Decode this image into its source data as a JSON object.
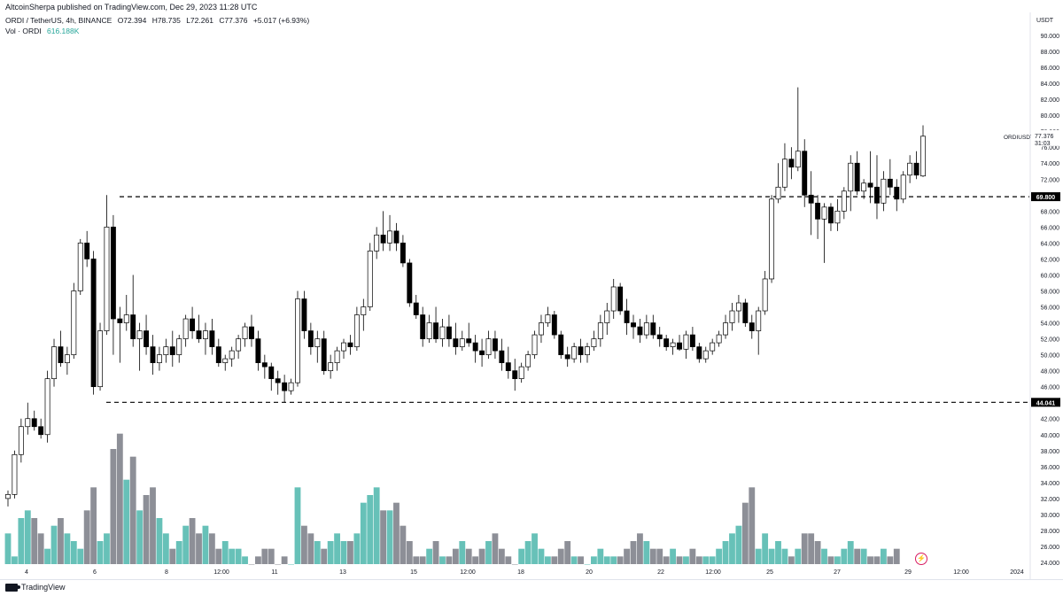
{
  "header": {
    "publisher_text": "AltcoinSherpa published on TradingView.com, Dec 29, 2023 11:28 UTC"
  },
  "legend": {
    "symbol": "ORDI / TetherUS, 4h, BINANCE",
    "open": "O72.394",
    "high": "H78.735",
    "low": "L72.261",
    "close": "C77.376",
    "change": "+5.017 (+6.93%)",
    "vol_label": "Vol · ORDI",
    "vol_value": "616.188K"
  },
  "price_axis": {
    "currency": "USDT",
    "ticks": [
      "90.000",
      "88.000",
      "86.000",
      "84.000",
      "82.000",
      "80.000",
      "78.000",
      "76.000",
      "74.000",
      "72.000",
      "70.000",
      "68.000",
      "66.000",
      "64.000",
      "62.000",
      "60.000",
      "58.000",
      "56.000",
      "54.000",
      "52.000",
      "50.000",
      "48.000",
      "46.000",
      "44.000",
      "42.000",
      "40.000",
      "38.000",
      "36.000",
      "34.000",
      "32.000",
      "30.000",
      "28.000",
      "26.000",
      "24.000"
    ]
  },
  "time_axis": {
    "ticks": [
      "4",
      "6",
      "8",
      "12:00",
      "11",
      "13",
      "15",
      "12:00",
      "18",
      "20",
      "22",
      "12:00",
      "25",
      "27",
      "29",
      "12:00",
      "2024"
    ]
  },
  "price_labels": {
    "symbol": "ORDIUSDT",
    "last": "77.376",
    "countdown": "31:03",
    "resistance": "69.800",
    "support": "44.041"
  },
  "colors": {
    "up_candle": "#ffffff",
    "down_candle": "#000000",
    "volume_up": "#26a69a",
    "volume_down": "#5d606b",
    "line": "#000000"
  },
  "footer": {
    "logo_text": "TradingView",
    "icon": "bolt-icon"
  },
  "chart_data": {
    "type": "candlestick",
    "ylim": [
      24,
      91
    ],
    "levels": [
      69.8,
      44.041
    ],
    "candles": [
      [
        32,
        33,
        31,
        32.5
      ],
      [
        32.5,
        38,
        32,
        37.5
      ],
      [
        37.5,
        42,
        36.5,
        41
      ],
      [
        41,
        44,
        40,
        42
      ],
      [
        42,
        43,
        40.5,
        41
      ],
      [
        41,
        42,
        39.5,
        40
      ],
      [
        40,
        48,
        39,
        47
      ],
      [
        47,
        52,
        46,
        51
      ],
      [
        51,
        53,
        48.5,
        49
      ],
      [
        49,
        51,
        47.5,
        50
      ],
      [
        50,
        59,
        49.5,
        58
      ],
      [
        58,
        64.5,
        57.5,
        64
      ],
      [
        64,
        65.5,
        61,
        62
      ],
      [
        62,
        63,
        45,
        46
      ],
      [
        46,
        54,
        45.5,
        53
      ],
      [
        53,
        70,
        52.5,
        66
      ],
      [
        66,
        67.5,
        50,
        54.5
      ],
      [
        54.5,
        56,
        49,
        54
      ],
      [
        54,
        57.5,
        53,
        55
      ],
      [
        55,
        60,
        51,
        52
      ],
      [
        52,
        54,
        48,
        53
      ],
      [
        53,
        55,
        50,
        51
      ],
      [
        51,
        52.5,
        47.5,
        49
      ],
      [
        49,
        51,
        48,
        50
      ],
      [
        50,
        52,
        49,
        51
      ],
      [
        51,
        53,
        48.5,
        50
      ],
      [
        50,
        52.5,
        49,
        52
      ],
      [
        52,
        55,
        51,
        54.5
      ],
      [
        54.5,
        56,
        52,
        53
      ],
      [
        53,
        55,
        51.5,
        52
      ],
      [
        52,
        54,
        50,
        53
      ],
      [
        53,
        54.5,
        50,
        51
      ],
      [
        51,
        52,
        48.5,
        49
      ],
      [
        49,
        50,
        48,
        49.5
      ],
      [
        49.5,
        51,
        48.5,
        50.5
      ],
      [
        50.5,
        52.5,
        49.5,
        52
      ],
      [
        52,
        54,
        51,
        53.5
      ],
      [
        53.5,
        55,
        51,
        52
      ],
      [
        52,
        53,
        48,
        49
      ],
      [
        49,
        50,
        47,
        48.5
      ],
      [
        48.5,
        49,
        45.5,
        47
      ],
      [
        47,
        48,
        45,
        46.5
      ],
      [
        46.5,
        47.5,
        44,
        45.5
      ],
      [
        45.5,
        47,
        45,
        46.5
      ],
      [
        46.5,
        58,
        46,
        57
      ],
      [
        57,
        58,
        52,
        53
      ],
      [
        53,
        54,
        50,
        51
      ],
      [
        51,
        53,
        49,
        52
      ],
      [
        52,
        53,
        47.5,
        48
      ],
      [
        48,
        50,
        47,
        49
      ],
      [
        49,
        51,
        48,
        50.5
      ],
      [
        50.5,
        52,
        49.5,
        51.5
      ],
      [
        51.5,
        52.5,
        50,
        51
      ],
      [
        51,
        56,
        50.5,
        55
      ],
      [
        55,
        57,
        53,
        56
      ],
      [
        56,
        64,
        55.5,
        63
      ],
      [
        63,
        66,
        62,
        65
      ],
      [
        65,
        68,
        63,
        64
      ],
      [
        64,
        67.5,
        63,
        65.5
      ],
      [
        65.5,
        66.5,
        63,
        64
      ],
      [
        64,
        65,
        61,
        61.5
      ],
      [
        61.5,
        62,
        56,
        56.5
      ],
      [
        56.5,
        57.5,
        54.5,
        55
      ],
      [
        55,
        56,
        51,
        52
      ],
      [
        52,
        55,
        51.5,
        54
      ],
      [
        54,
        56,
        51.5,
        52
      ],
      [
        52,
        54.5,
        51,
        53.5
      ],
      [
        53.5,
        55,
        51,
        52
      ],
      [
        52,
        54,
        50,
        51
      ],
      [
        51,
        53,
        50.5,
        52
      ],
      [
        52,
        54,
        51,
        51.5
      ],
      [
        51.5,
        52.5,
        49,
        50.5
      ],
      [
        50.5,
        52,
        48.5,
        50
      ],
      [
        50,
        53,
        49.5,
        52
      ],
      [
        52,
        53,
        49.5,
        50.5
      ],
      [
        50.5,
        52,
        48,
        49
      ],
      [
        49,
        51,
        47,
        48
      ],
      [
        48,
        49.5,
        45.5,
        47
      ],
      [
        47,
        49,
        46.5,
        48.5
      ],
      [
        48.5,
        50.5,
        48,
        50
      ],
      [
        50,
        53,
        49.5,
        52.5
      ],
      [
        52.5,
        55,
        51.5,
        54
      ],
      [
        54,
        56,
        53.5,
        55
      ],
      [
        55,
        55.5,
        52,
        52.5
      ],
      [
        52.5,
        53,
        49.5,
        50
      ],
      [
        50,
        51,
        48.5,
        49.5
      ],
      [
        49.5,
        51.5,
        49,
        51
      ],
      [
        51,
        52,
        49,
        50
      ],
      [
        50,
        51.5,
        49,
        51
      ],
      [
        51,
        53,
        50.5,
        52
      ],
      [
        52,
        55,
        51,
        54
      ],
      [
        54,
        56.5,
        52.5,
        55.5
      ],
      [
        55.5,
        59.5,
        54.5,
        58.5
      ],
      [
        58.5,
        59,
        55,
        55.5
      ],
      [
        55.5,
        57,
        52.5,
        54
      ],
      [
        54,
        55,
        52,
        53.5
      ],
      [
        53.5,
        54.5,
        51.5,
        52.5
      ],
      [
        52.5,
        55,
        52,
        54
      ],
      [
        54,
        55,
        52,
        52.5
      ],
      [
        52.5,
        53.5,
        51,
        52
      ],
      [
        52,
        52.5,
        50.5,
        51
      ],
      [
        51,
        52,
        50,
        51.5
      ],
      [
        51.5,
        52.5,
        50.5,
        50.7
      ],
      [
        50.7,
        53,
        49.5,
        52.5
      ],
      [
        52.5,
        53.5,
        50.5,
        51
      ],
      [
        51,
        51.5,
        49,
        49.5
      ],
      [
        49.5,
        51,
        49,
        50.5
      ],
      [
        50.5,
        52,
        50,
        51.5
      ],
      [
        51.5,
        53,
        51,
        52.5
      ],
      [
        52.5,
        55,
        52,
        54
      ],
      [
        54,
        56.5,
        53,
        55.5
      ],
      [
        55.5,
        57.5,
        54,
        56.5
      ],
      [
        56.5,
        57,
        53.5,
        54
      ],
      [
        54,
        55,
        52,
        53
      ],
      [
        53,
        56,
        50,
        55.5
      ],
      [
        55.5,
        60.5,
        55,
        59.5
      ],
      [
        59.5,
        70,
        59,
        69.5
      ],
      [
        69.5,
        74,
        69,
        71
      ],
      [
        71,
        76.5,
        70.5,
        74.5
      ],
      [
        74.5,
        76,
        72,
        73.5
      ],
      [
        73.5,
        83.5,
        73,
        75.5
      ],
      [
        75.5,
        77,
        68.5,
        70
      ],
      [
        70,
        73,
        65,
        69
      ],
      [
        69,
        70,
        64.5,
        67
      ],
      [
        67,
        69,
        61.5,
        68.5
      ],
      [
        68.5,
        69,
        65.5,
        66.5
      ],
      [
        66.5,
        69.5,
        65.5,
        68
      ],
      [
        68,
        71,
        67,
        70.5
      ],
      [
        70.5,
        75,
        68,
        74
      ],
      [
        74,
        75.5,
        70,
        70.5
      ],
      [
        70.5,
        72,
        69.5,
        71.5
      ],
      [
        71.5,
        75.5,
        69,
        71
      ],
      [
        71,
        75,
        67,
        69
      ],
      [
        69,
        73,
        68,
        72
      ],
      [
        72,
        74.5,
        70,
        71
      ],
      [
        71,
        72,
        68,
        69.5
      ],
      [
        69.5,
        73,
        69,
        72.5
      ],
      [
        72.5,
        75,
        71.5,
        74
      ],
      [
        74,
        75.5,
        72,
        72.5
      ],
      [
        72.394,
        78.735,
        72.261,
        77.376
      ]
    ],
    "volume": [
      28,
      25,
      30,
      31,
      30,
      28,
      26,
      29,
      30,
      28,
      27,
      26,
      31,
      34,
      27,
      28,
      39,
      41,
      35,
      38,
      31,
      33,
      34,
      30,
      28,
      26,
      27,
      29,
      30,
      28,
      29,
      28,
      26,
      27,
      26,
      26,
      25,
      24,
      25,
      26,
      26,
      24,
      25,
      24,
      34,
      29,
      28,
      27,
      26,
      27,
      28,
      27,
      27,
      28,
      32,
      33,
      34,
      31,
      31,
      32,
      29,
      27,
      25,
      25,
      26,
      27,
      25,
      25,
      26,
      27,
      26,
      25,
      26,
      27,
      28,
      26,
      25,
      24,
      26,
      27,
      28,
      26,
      25,
      25,
      26,
      27,
      25,
      25,
      24,
      25,
      26,
      25,
      25,
      25,
      26,
      27,
      28,
      27,
      26,
      26,
      25,
      26,
      25,
      25,
      26,
      25,
      25,
      25,
      26,
      27,
      28,
      29,
      32,
      34,
      26,
      28,
      26,
      27,
      26,
      25,
      26,
      28,
      28,
      27,
      26,
      25,
      25,
      26,
      27,
      26,
      26,
      25,
      25,
      26,
      25,
      26
    ],
    "volume_ylim": [
      24,
      42
    ]
  }
}
